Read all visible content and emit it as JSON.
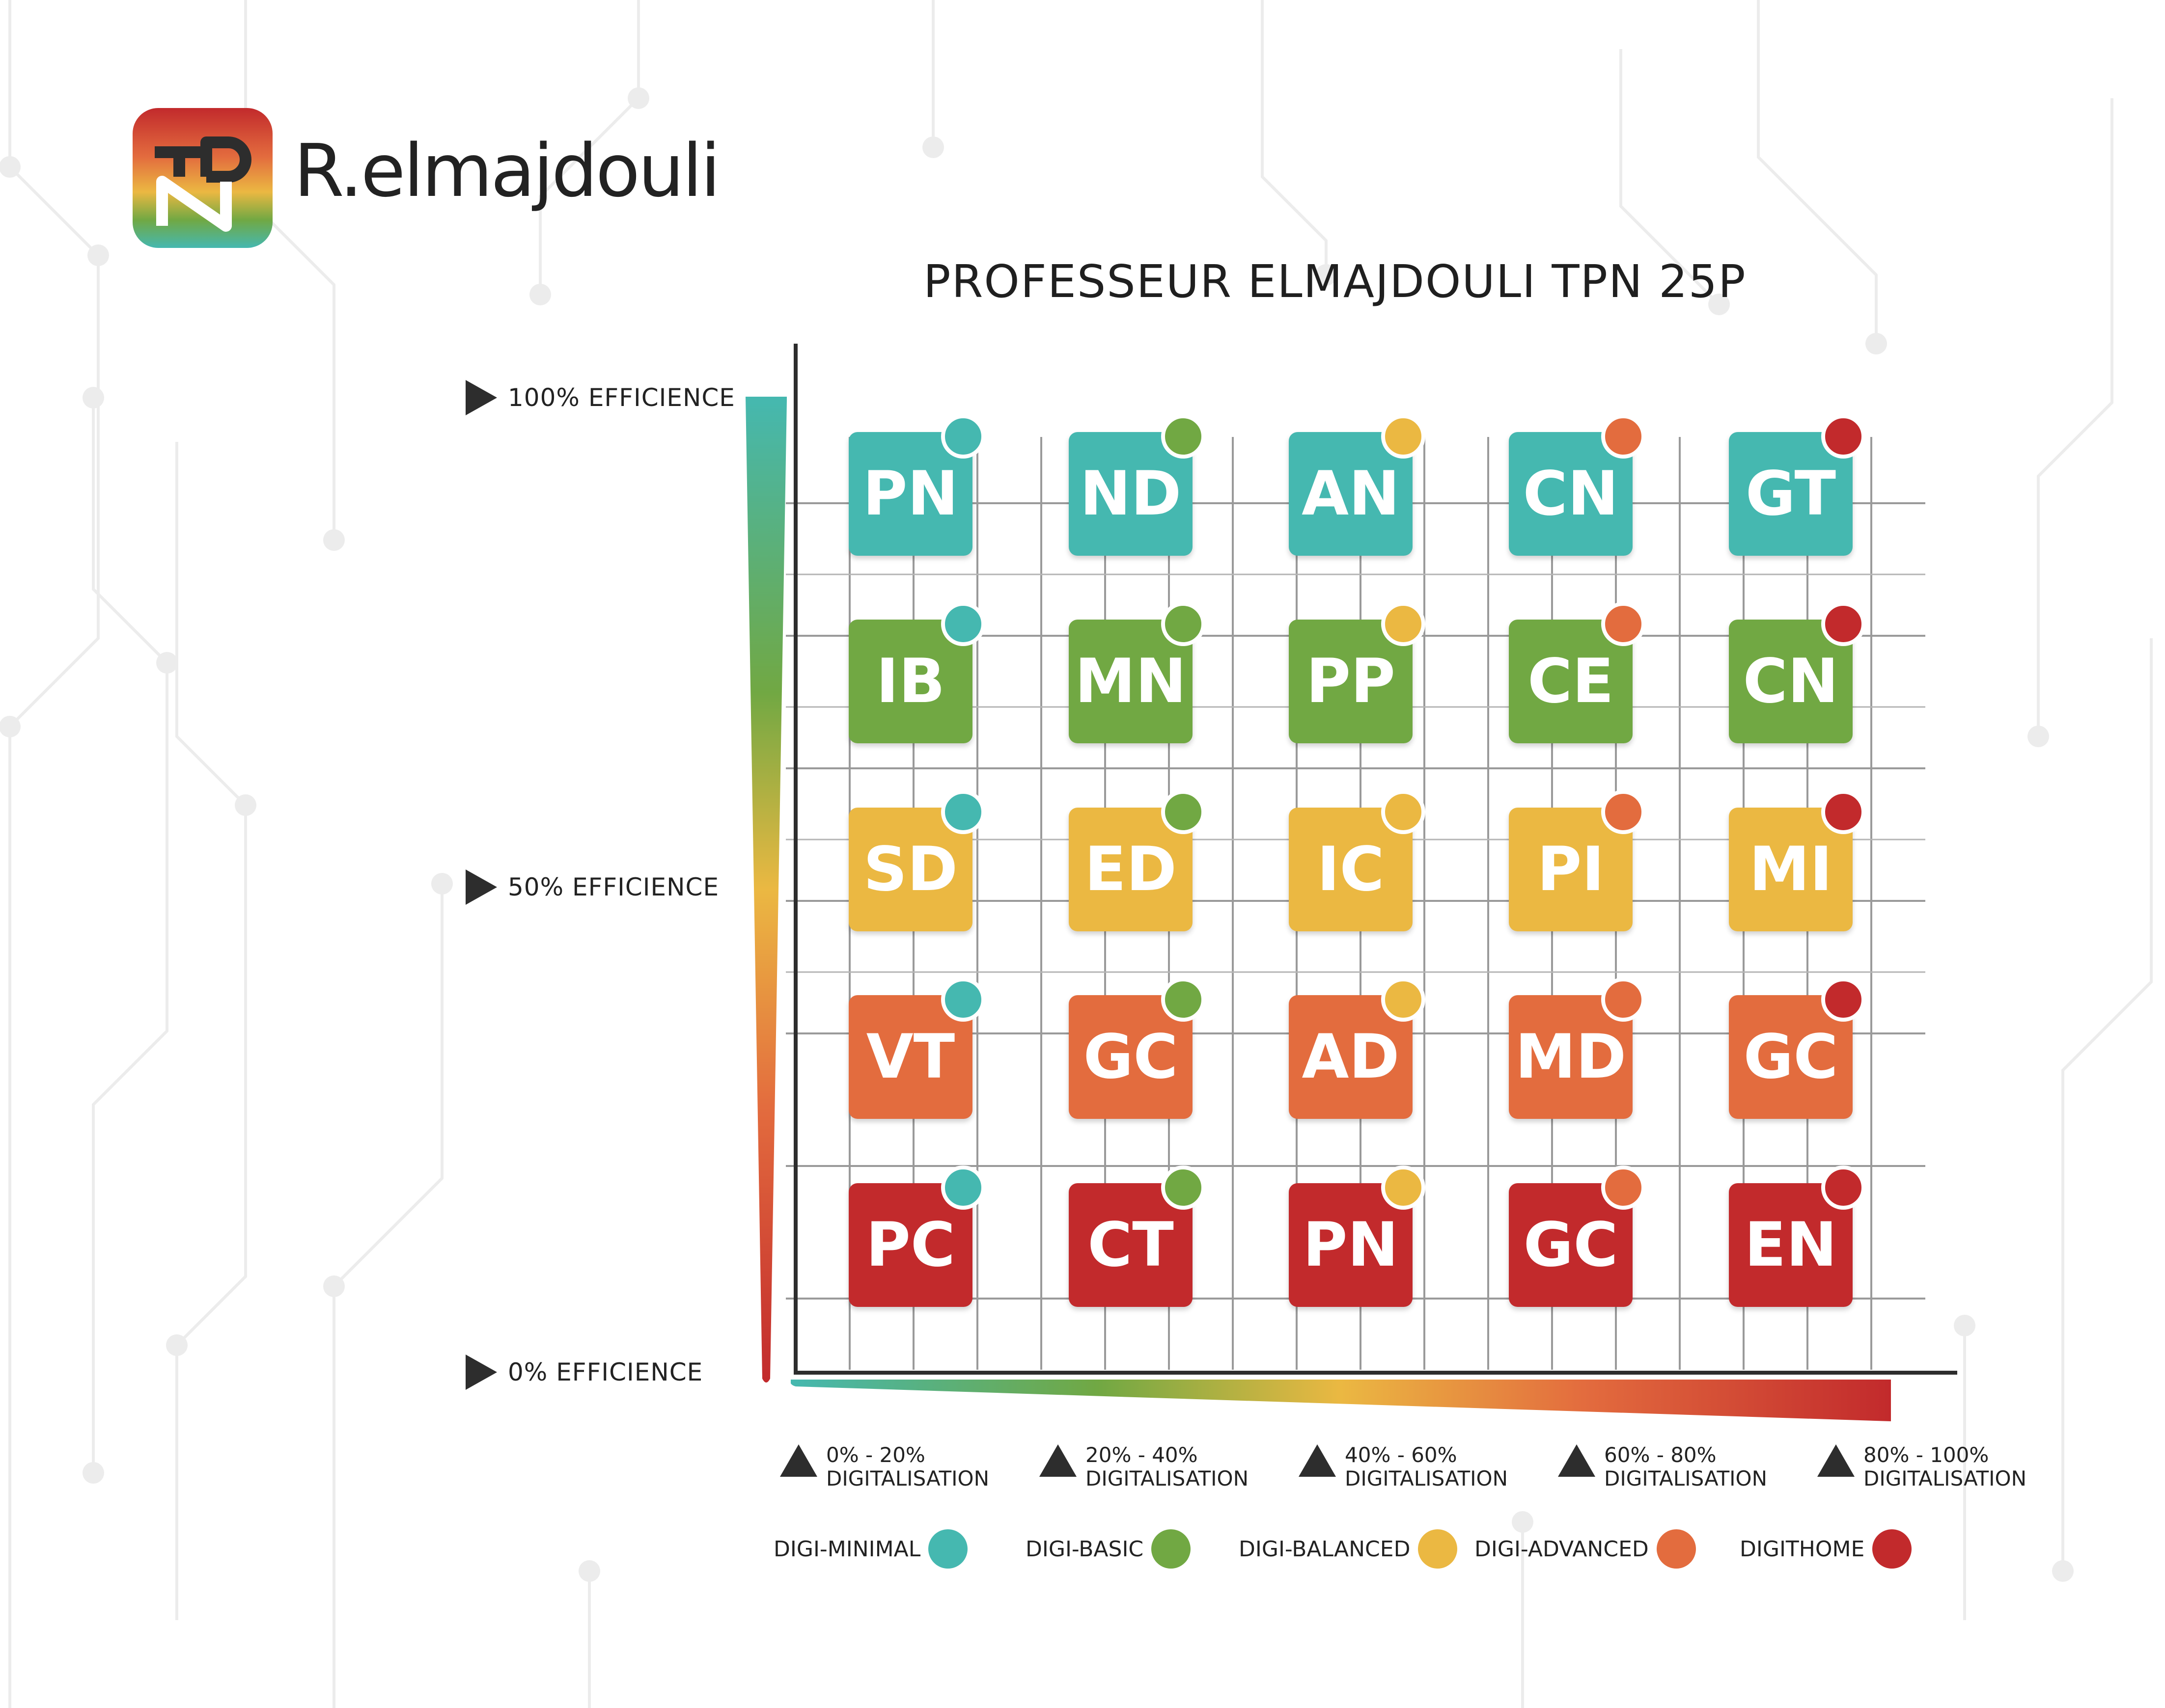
{
  "brand": {
    "name": "R.elmajdouli",
    "logo_letters": "TPN"
  },
  "title": "PROFESSEUR ELMAJDOULI TPN 25P",
  "y_labels": [
    "100% EFFICIENCE",
    "50% EFFICIENCE",
    "0% EFFICIENCE"
  ],
  "x_ranges": [
    {
      "range": "0% - 20%",
      "label": "DIGITALISATION"
    },
    {
      "range": "20% - 40%",
      "label": "DIGITALISATION"
    },
    {
      "range": "40% - 60%",
      "label": "DIGITALISATION"
    },
    {
      "range": "60% - 80%",
      "label": "DIGITALISATION"
    },
    {
      "range": "80% - 100%",
      "label": "DIGITALISATION"
    }
  ],
  "legend": [
    {
      "label": "DIGI-MINIMAL",
      "color": "#45b8b0"
    },
    {
      "label": "DIGI-BASIC",
      "color": "#71a843"
    },
    {
      "label": "DIGI-BALANCED",
      "color": "#ebb842"
    },
    {
      "label": "DIGI-ADVANCED",
      "color": "#e36c3e"
    },
    {
      "label": "DIGITHOME",
      "color": "#c22a2c"
    }
  ],
  "row_colors": [
    "#45b8b0",
    "#71a843",
    "#ebb842",
    "#e36c3e",
    "#c22a2c"
  ],
  "rows": [
    [
      "PN",
      "ND",
      "AN",
      "CN",
      "GT"
    ],
    [
      "IB",
      "MN",
      "PP",
      "CE",
      "CN"
    ],
    [
      "SD",
      "ED",
      "IC",
      "PI",
      "MI"
    ],
    [
      "VT",
      "GC",
      "AD",
      "MD",
      "GC"
    ],
    [
      "PC",
      "CT",
      "PN",
      "GC",
      "EN"
    ]
  ]
}
